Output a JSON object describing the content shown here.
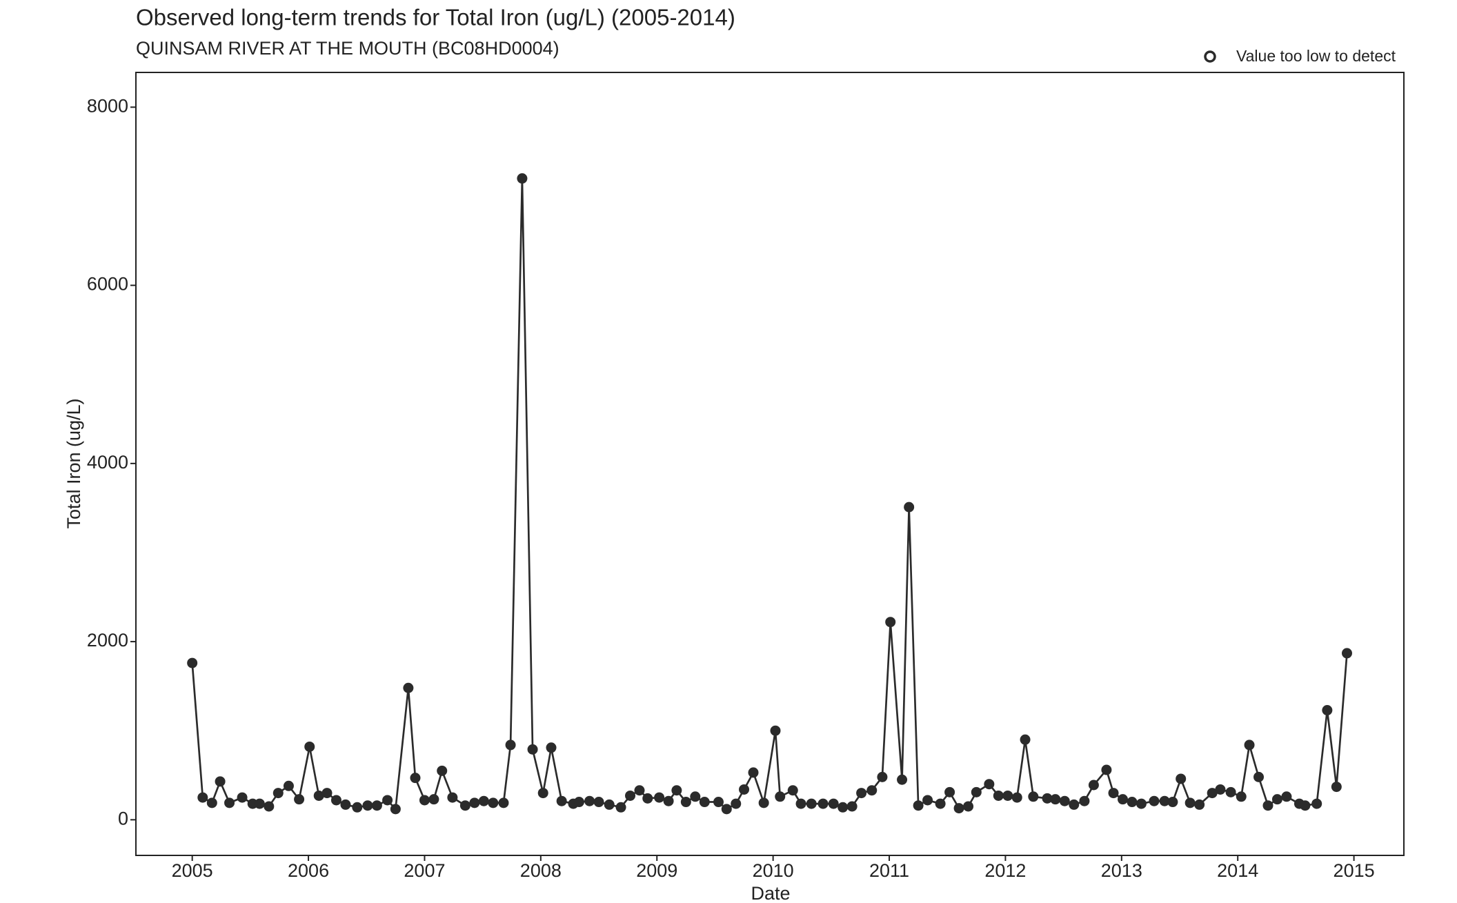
{
  "chart_data": {
    "type": "line",
    "title": "Observed long-term trends for Total Iron (ug/L) (2005-2014)",
    "subtitle": "QUINSAM RIVER AT THE MOUTH (BC08HD0004)",
    "x_label": "Date",
    "y_label": "Total Iron (ug/L)",
    "legend": {
      "label": "Value too low to detect",
      "position": "top-right"
    },
    "color": "#2b2b2b",
    "xlim": [
      2004.515,
      2015.43
    ],
    "ylim": [
      -400,
      8390
    ],
    "xticks": [
      2005,
      2006,
      2007,
      2008,
      2009,
      2010,
      2011,
      2012,
      2013,
      2014,
      2015
    ],
    "yticks": [
      0,
      2000,
      4000,
      6000,
      8000
    ],
    "grid": false,
    "x": [
      2005.0,
      2005.09,
      2005.17,
      2005.24,
      2005.32,
      2005.43,
      2005.52,
      2005.58,
      2005.66,
      2005.74,
      2005.83,
      2005.92,
      2006.01,
      2006.09,
      2006.16,
      2006.24,
      2006.32,
      2006.42,
      2006.51,
      2006.59,
      2006.68,
      2006.75,
      2006.86,
      2006.92,
      2007.0,
      2007.08,
      2007.15,
      2007.24,
      2007.35,
      2007.43,
      2007.51,
      2007.59,
      2007.68,
      2007.74,
      2007.84,
      2007.93,
      2008.02,
      2008.09,
      2008.18,
      2008.28,
      2008.33,
      2008.42,
      2008.5,
      2008.59,
      2008.69,
      2008.77,
      2008.85,
      2008.92,
      2009.02,
      2009.1,
      2009.17,
      2009.25,
      2009.33,
      2009.41,
      2009.53,
      2009.6,
      2009.68,
      2009.75,
      2009.83,
      2009.92,
      2010.02,
      2010.06,
      2010.17,
      2010.24,
      2010.33,
      2010.43,
      2010.52,
      2010.6,
      2010.68,
      2010.76,
      2010.85,
      2010.94,
      2011.01,
      2011.11,
      2011.17,
      2011.25,
      2011.33,
      2011.44,
      2011.52,
      2011.6,
      2011.68,
      2011.75,
      2011.86,
      2011.94,
      2012.02,
      2012.1,
      2012.17,
      2012.24,
      2012.36,
      2012.43,
      2012.51,
      2012.59,
      2012.68,
      2012.76,
      2012.87,
      2012.93,
      2013.01,
      2013.09,
      2013.17,
      2013.28,
      2013.37,
      2013.44,
      2013.51,
      2013.59,
      2013.67,
      2013.78,
      2013.85,
      2013.94,
      2014.03,
      2014.1,
      2014.18,
      2014.26,
      2014.34,
      2014.42,
      2014.53,
      2014.58,
      2014.68,
      2014.77,
      2014.85,
      2014.94
    ],
    "values": [
      1760,
      250,
      190,
      430,
      190,
      250,
      180,
      180,
      150,
      300,
      380,
      230,
      820,
      270,
      300,
      220,
      170,
      140,
      160,
      160,
      220,
      120,
      1480,
      470,
      220,
      230,
      550,
      250,
      160,
      190,
      210,
      190,
      190,
      840,
      7200,
      790,
      300,
      810,
      210,
      180,
      200,
      210,
      200,
      170,
      140,
      270,
      330,
      240,
      250,
      210,
      330,
      200,
      260,
      200,
      200,
      120,
      180,
      340,
      530,
      190,
      1000,
      260,
      330,
      180,
      180,
      180,
      180,
      140,
      150,
      300,
      330,
      480,
      2220,
      450,
      3510,
      160,
      220,
      180,
      310,
      130,
      150,
      310,
      400,
      270,
      270,
      250,
      900,
      260,
      240,
      230,
      210,
      170,
      210,
      390,
      560,
      300,
      230,
      200,
      180,
      210,
      210,
      200,
      460,
      190,
      170,
      300,
      340,
      310,
      260,
      840,
      480,
      160,
      230,
      260,
      180,
      160,
      180,
      1230,
      370,
      1870
    ]
  }
}
